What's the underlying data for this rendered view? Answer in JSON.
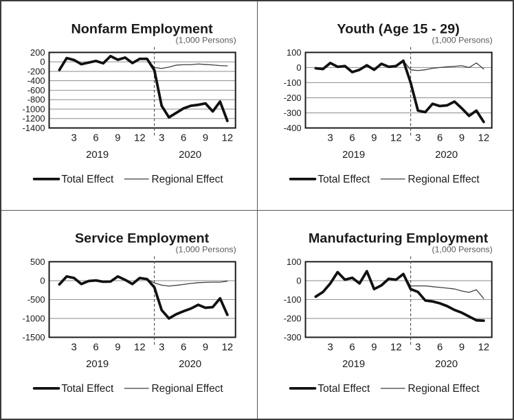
{
  "unit_label": "(1,000 Persons)",
  "legend": {
    "total": "Total Effect",
    "regional": "Regional Effect"
  },
  "colors": {
    "total_line": "#111111",
    "regional_line": "#3d3d3d",
    "grid": "#8a8a8a",
    "frame": "#1a1a1a",
    "subtitle": "#595959",
    "dashed": "#555555",
    "text": "#1a1a1a"
  },
  "x_ticks": [
    {
      "month": 3,
      "label": "3"
    },
    {
      "month": 6,
      "label": "6"
    },
    {
      "month": 9,
      "label": "9"
    },
    {
      "month": 12,
      "label": "12"
    },
    {
      "month": 15,
      "label": "3"
    },
    {
      "month": 18,
      "label": "6"
    },
    {
      "month": 21,
      "label": "9"
    },
    {
      "month": 24,
      "label": "12"
    }
  ],
  "years": [
    {
      "month": 6.2,
      "label": "2019"
    },
    {
      "month": 18.9,
      "label": "2020"
    }
  ],
  "divider_month": 14,
  "chart_data": [
    {
      "type": "line",
      "title": "Nonfarm Employment",
      "ylabel": "(1,000 Persons)",
      "x_range_note": "monthly, Jan 2019 - Dec 2020",
      "ylim": [
        -1400,
        200
      ],
      "yticks": [
        200,
        0,
        -200,
        -400,
        -600,
        -800,
        -1000,
        -1200,
        -1400
      ],
      "series": [
        {
          "name": "Total Effect",
          "values": [
            -170,
            80,
            40,
            -50,
            -15,
            20,
            -30,
            120,
            45,
            90,
            -25,
            65,
            65,
            -175,
            -930,
            -1175,
            -1080,
            -985,
            -930,
            -910,
            -880,
            -1050,
            -840,
            -1250
          ]
        },
        {
          "name": "Regional Effect",
          "values": [
            -170,
            80,
            40,
            -50,
            -15,
            20,
            -30,
            120,
            45,
            90,
            -25,
            65,
            65,
            -120,
            -140,
            -110,
            -70,
            -60,
            -60,
            -45,
            -55,
            -65,
            -80,
            -85
          ]
        }
      ]
    },
    {
      "type": "line",
      "title": "Youth (Age 15 - 29)",
      "ylabel": "(1,000 Persons)",
      "x_range_note": "monthly, Jan 2019 - Dec 2020",
      "ylim": [
        -400,
        100
      ],
      "yticks": [
        100,
        0,
        -100,
        -200,
        -300,
        -400
      ],
      "series": [
        {
          "name": "Total Effect",
          "values": [
            -5,
            -10,
            30,
            5,
            10,
            -30,
            -15,
            15,
            -15,
            25,
            5,
            10,
            45,
            -100,
            -285,
            -295,
            -240,
            -255,
            -250,
            -225,
            -270,
            -320,
            -285,
            -360
          ]
        },
        {
          "name": "Regional Effect",
          "values": [
            -5,
            -10,
            30,
            5,
            10,
            -30,
            -15,
            15,
            -15,
            25,
            5,
            10,
            45,
            -15,
            -20,
            -15,
            -5,
            0,
            5,
            8,
            12,
            0,
            30,
            -10
          ]
        }
      ]
    },
    {
      "type": "line",
      "title": "Service Employment",
      "ylabel": "(1,000 Persons)",
      "x_range_note": "monthly, Jan 2019 - Dec 2020",
      "ylim": [
        -1500,
        500
      ],
      "yticks": [
        500,
        0,
        -500,
        -1000,
        -1500
      ],
      "series": [
        {
          "name": "Total Effect",
          "values": [
            -100,
            110,
            70,
            -90,
            -10,
            5,
            -30,
            -25,
            110,
            20,
            -90,
            70,
            40,
            -175,
            -780,
            -1000,
            -890,
            -810,
            -740,
            -640,
            -720,
            -700,
            -470,
            -905
          ]
        },
        {
          "name": "Regional Effect",
          "values": [
            -100,
            110,
            70,
            -90,
            -10,
            5,
            -30,
            -25,
            110,
            20,
            -90,
            70,
            40,
            -60,
            -120,
            -145,
            -125,
            -100,
            -75,
            -55,
            -45,
            -40,
            -40,
            -15
          ]
        }
      ]
    },
    {
      "type": "line",
      "title": "Manufacturing Employment",
      "ylabel": "(1,000 Persons)",
      "x_range_note": "monthly, Jan 2019 - Dec 2020",
      "ylim": [
        -300,
        100
      ],
      "yticks": [
        100,
        0,
        -100,
        -200,
        -300
      ],
      "series": [
        {
          "name": "Total Effect",
          "values": [
            -85,
            -60,
            -15,
            45,
            5,
            15,
            -15,
            50,
            -45,
            -25,
            10,
            5,
            35,
            -45,
            -60,
            -105,
            -110,
            -120,
            -135,
            -155,
            -170,
            -190,
            -210,
            -212
          ]
        },
        {
          "name": "Regional Effect",
          "values": [
            -85,
            -60,
            -15,
            45,
            5,
            15,
            -15,
            50,
            -45,
            -25,
            10,
            5,
            35,
            -28,
            -28,
            -28,
            -32,
            -36,
            -40,
            -44,
            -55,
            -62,
            -48,
            -95
          ]
        }
      ]
    }
  ]
}
